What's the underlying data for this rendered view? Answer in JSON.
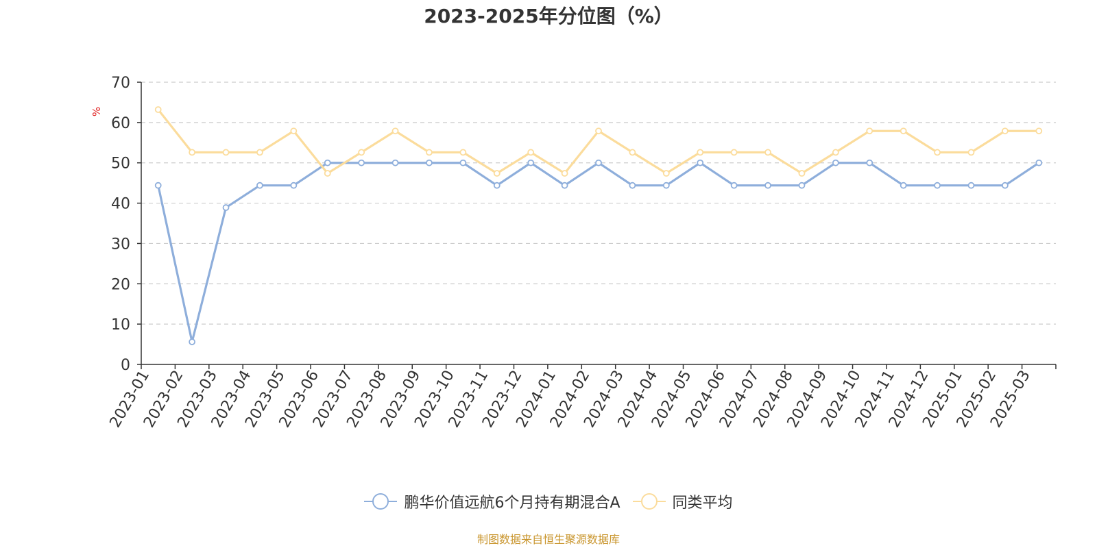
{
  "chart_data": {
    "type": "line",
    "title": "2023-2025年分位图（%）",
    "ylabel": "%",
    "ylim": [
      0,
      70
    ],
    "yticks": [
      0,
      10,
      20,
      30,
      40,
      50,
      60,
      70
    ],
    "grid": true,
    "legend_position": "bottom",
    "categories": [
      "2023-01",
      "2023-02",
      "2023-03",
      "2023-04",
      "2023-05",
      "2023-06",
      "2023-07",
      "2023-08",
      "2023-09",
      "2023-10",
      "2023-11",
      "2023-12",
      "2024-01",
      "2024-02",
      "2024-03",
      "2024-04",
      "2024-05",
      "2024-06",
      "2024-07",
      "2024-08",
      "2024-09",
      "2024-10",
      "2024-11",
      "2024-12",
      "2025-01",
      "2025-02",
      "2025-03"
    ],
    "series": [
      {
        "name": "鹏华价值远航6个月持有期混合A",
        "color": "#8eaedb",
        "values": [
          44.4,
          5.6,
          38.9,
          44.4,
          44.4,
          50,
          50,
          50,
          50,
          50,
          44.4,
          50,
          44.4,
          50,
          44.4,
          44.4,
          50,
          44.4,
          44.4,
          44.4,
          50,
          50,
          44.4,
          44.4,
          44.4,
          44.4,
          50
        ]
      },
      {
        "name": "同类平均",
        "color": "#fbdc9c",
        "values": [
          63.2,
          52.6,
          52.6,
          52.6,
          57.9,
          47.4,
          52.6,
          57.9,
          52.6,
          52.6,
          47.4,
          52.6,
          47.4,
          57.9,
          52.6,
          47.4,
          52.6,
          52.6,
          52.6,
          47.4,
          52.6,
          57.9,
          57.9,
          52.6,
          52.6,
          57.9,
          57.9
        ]
      }
    ]
  },
  "source_note": "制图数据来自恒生聚源数据库"
}
